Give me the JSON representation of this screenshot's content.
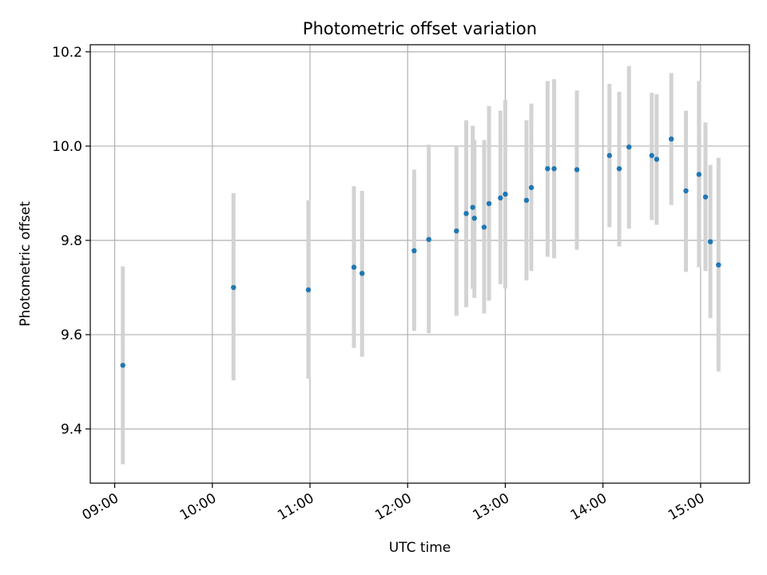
{
  "chart_data": {
    "type": "scatter",
    "title": "Photometric offset variation",
    "xlabel": "UTC time",
    "ylabel": "Photometric offset",
    "x_tick_labels": [
      "09:00",
      "10:00",
      "11:00",
      "12:00",
      "13:00",
      "14:00",
      "15:00"
    ],
    "x_ticks": [
      "09:00",
      "10:00",
      "11:00",
      "12:00",
      "13:00",
      "14:00",
      "15:00"
    ],
    "y_ticks": [
      9.4,
      9.6,
      9.8,
      10.0,
      10.2
    ],
    "y_tick_labels": [
      "9.4",
      "9.6",
      "9.8",
      "10.0",
      "10.2"
    ],
    "xlim": [
      "08:45",
      "15:30"
    ],
    "ylim": [
      9.285,
      10.215
    ],
    "grid": true,
    "point_color": "#1f77b4",
    "errorbar_color": "#d3d3d3",
    "points": [
      {
        "x": "09:05",
        "y": 9.535,
        "lo": 9.325,
        "hi": 9.745
      },
      {
        "x": "10:13",
        "y": 9.7,
        "lo": 9.503,
        "hi": 9.9
      },
      {
        "x": "10:59",
        "y": 9.695,
        "lo": 9.507,
        "hi": 9.885
      },
      {
        "x": "11:27",
        "y": 9.743,
        "lo": 9.572,
        "hi": 9.915
      },
      {
        "x": "11:32",
        "y": 9.73,
        "lo": 9.553,
        "hi": 9.905
      },
      {
        "x": "12:04",
        "y": 9.778,
        "lo": 9.608,
        "hi": 9.95
      },
      {
        "x": "12:13",
        "y": 9.802,
        "lo": 9.603,
        "hi": 10.003
      },
      {
        "x": "12:30",
        "y": 9.82,
        "lo": 9.64,
        "hi": 10.0
      },
      {
        "x": "12:36",
        "y": 9.857,
        "lo": 9.658,
        "hi": 10.055
      },
      {
        "x": "12:40",
        "y": 9.87,
        "lo": 9.697,
        "hi": 10.043
      },
      {
        "x": "12:41",
        "y": 9.847,
        "lo": 9.678,
        "hi": 10.013
      },
      {
        "x": "12:47",
        "y": 9.828,
        "lo": 9.645,
        "hi": 10.013
      },
      {
        "x": "12:50",
        "y": 9.878,
        "lo": 9.672,
        "hi": 10.085
      },
      {
        "x": "12:57",
        "y": 9.89,
        "lo": 9.707,
        "hi": 10.075
      },
      {
        "x": "13:00",
        "y": 9.898,
        "lo": 9.698,
        "hi": 10.098
      },
      {
        "x": "13:13",
        "y": 9.885,
        "lo": 9.715,
        "hi": 10.055
      },
      {
        "x": "13:16",
        "y": 9.912,
        "lo": 9.735,
        "hi": 10.09
      },
      {
        "x": "13:26",
        "y": 9.952,
        "lo": 9.765,
        "hi": 10.138
      },
      {
        "x": "13:30",
        "y": 9.952,
        "lo": 9.762,
        "hi": 10.142
      },
      {
        "x": "13:44",
        "y": 9.95,
        "lo": 9.78,
        "hi": 10.118
      },
      {
        "x": "14:04",
        "y": 9.98,
        "lo": 9.828,
        "hi": 10.132
      },
      {
        "x": "14:10",
        "y": 9.952,
        "lo": 9.787,
        "hi": 10.115
      },
      {
        "x": "14:16",
        "y": 9.998,
        "lo": 9.825,
        "hi": 10.17
      },
      {
        "x": "14:30",
        "y": 9.98,
        "lo": 9.843,
        "hi": 10.113
      },
      {
        "x": "14:33",
        "y": 9.972,
        "lo": 9.833,
        "hi": 10.11
      },
      {
        "x": "14:42",
        "y": 10.015,
        "lo": 9.875,
        "hi": 10.155
      },
      {
        "x": "14:51",
        "y": 9.905,
        "lo": 9.733,
        "hi": 10.075
      },
      {
        "x": "14:59",
        "y": 9.94,
        "lo": 9.743,
        "hi": 10.138
      },
      {
        "x": "15:03",
        "y": 9.892,
        "lo": 9.735,
        "hi": 10.05
      },
      {
        "x": "15:06",
        "y": 9.797,
        "lo": 9.635,
        "hi": 9.96
      },
      {
        "x": "15:11",
        "y": 9.748,
        "lo": 9.522,
        "hi": 9.975
      }
    ]
  }
}
